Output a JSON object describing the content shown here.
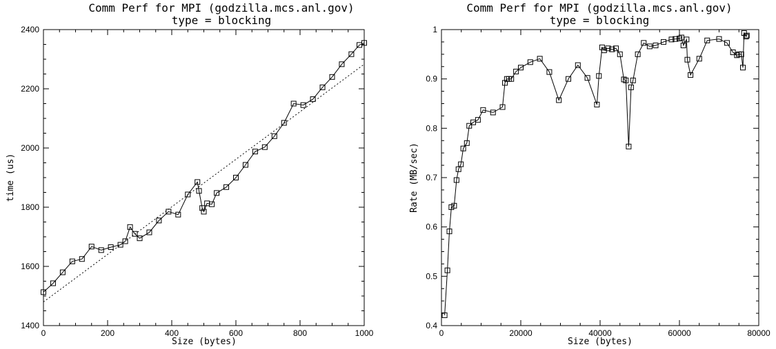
{
  "chart_data": [
    {
      "type": "line",
      "title": "Comm Perf for MPI (godzilla.mcs.anl.gov)",
      "subtitle": "type = blocking",
      "xlabel": "Size (bytes)",
      "ylabel": "time (us)",
      "xlim": [
        0,
        1000
      ],
      "ylim": [
        1400,
        2400
      ],
      "xticks": [
        0,
        200,
        400,
        600,
        800,
        1000
      ],
      "yticks": [
        1400,
        1600,
        1800,
        2000,
        2200,
        2400
      ],
      "grid": false,
      "series": [
        {
          "marker": "square",
          "style": "solid",
          "x": [
            0,
            30,
            60,
            90,
            120,
            150,
            180,
            210,
            240,
            255,
            270,
            285,
            300,
            330,
            360,
            390,
            420,
            450,
            480,
            485,
            495,
            500,
            510,
            525,
            540,
            570,
            600,
            630,
            660,
            690,
            720,
            750,
            780,
            810,
            840,
            870,
            900,
            930,
            960,
            985,
            1000
          ],
          "y": [
            1513,
            1543,
            1580,
            1617,
            1625,
            1667,
            1655,
            1665,
            1673,
            1685,
            1733,
            1710,
            1695,
            1715,
            1755,
            1785,
            1775,
            1843,
            1885,
            1855,
            1797,
            1785,
            1813,
            1810,
            1848,
            1868,
            1900,
            1943,
            1988,
            2003,
            2040,
            2085,
            2150,
            2145,
            2165,
            2205,
            2240,
            2283,
            2317,
            2348,
            2355
          ]
        },
        {
          "style": "dotted",
          "x": [
            0,
            1000
          ],
          "y": [
            1480,
            2283
          ]
        }
      ]
    },
    {
      "type": "line",
      "title": "Comm Perf for MPI (godzilla.mcs.anl.gov)",
      "subtitle": "type = blocking",
      "xlabel": "Size (bytes)",
      "ylabel": "Rate (MB/sec)",
      "xlim": [
        0,
        80000
      ],
      "ylim": [
        0.4,
        1.0
      ],
      "xticks": [
        0,
        20000,
        40000,
        60000,
        80000
      ],
      "yticks": [
        0.4,
        0.5,
        0.6,
        0.7,
        0.8,
        0.9,
        1.0
      ],
      "grid": false,
      "series": [
        {
          "marker": "square",
          "style": "solid",
          "x": [
            800,
            1500,
            2000,
            2500,
            3200,
            3800,
            4300,
            4900,
            5500,
            6400,
            7000,
            8000,
            9200,
            10500,
            13000,
            15400,
            16000,
            16500,
            17000,
            17600,
            18800,
            20000,
            22400,
            24800,
            27200,
            29600,
            32000,
            34400,
            36800,
            39200,
            39700,
            40500,
            41000,
            42000,
            43000,
            44000,
            45000,
            46000,
            46500,
            47200,
            47800,
            48300,
            49500,
            51000,
            52500,
            54000,
            56000,
            58000,
            59000,
            60000,
            60500,
            61000,
            61800,
            62000,
            62800,
            65000,
            67000,
            70000,
            72000,
            73500,
            74500,
            75000,
            75600,
            76000,
            76300,
            76800,
            77000
          ],
          "y": [
            0.421,
            0.512,
            0.591,
            0.64,
            0.643,
            0.695,
            0.717,
            0.727,
            0.759,
            0.77,
            0.805,
            0.812,
            0.817,
            0.837,
            0.832,
            0.843,
            0.892,
            0.9,
            0.9,
            0.9,
            0.915,
            0.923,
            0.934,
            0.941,
            0.914,
            0.857,
            0.9,
            0.928,
            0.902,
            0.848,
            0.906,
            0.964,
            0.958,
            0.962,
            0.96,
            0.962,
            0.95,
            0.899,
            0.897,
            0.763,
            0.883,
            0.897,
            0.95,
            0.973,
            0.966,
            0.968,
            0.975,
            0.98,
            0.981,
            0.982,
            0.984,
            0.968,
            0.98,
            0.939,
            0.908,
            0.941,
            0.978,
            0.981,
            0.973,
            0.954,
            0.948,
            0.95,
            0.95,
            0.923,
            0.993,
            0.986,
            0.988
          ]
        }
      ]
    }
  ]
}
